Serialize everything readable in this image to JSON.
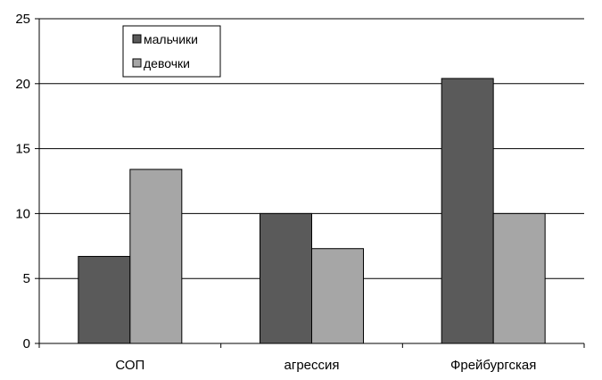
{
  "chart_data": {
    "type": "bar",
    "categories": [
      "СОП",
      "агрессия",
      "Фрейбургская"
    ],
    "series": [
      {
        "name": "мальчики",
        "values": [
          6.7,
          10.0,
          20.4
        ],
        "color": "#5a5a5a"
      },
      {
        "name": "девочки",
        "values": [
          13.4,
          7.3,
          10.0
        ],
        "color": "#a6a6a6"
      }
    ],
    "ylim": [
      0,
      25
    ],
    "yticks": [
      0,
      5,
      10,
      15,
      20,
      25
    ],
    "grid": true,
    "legend_position": "top-left",
    "title": "",
    "xlabel": "",
    "ylabel": ""
  }
}
